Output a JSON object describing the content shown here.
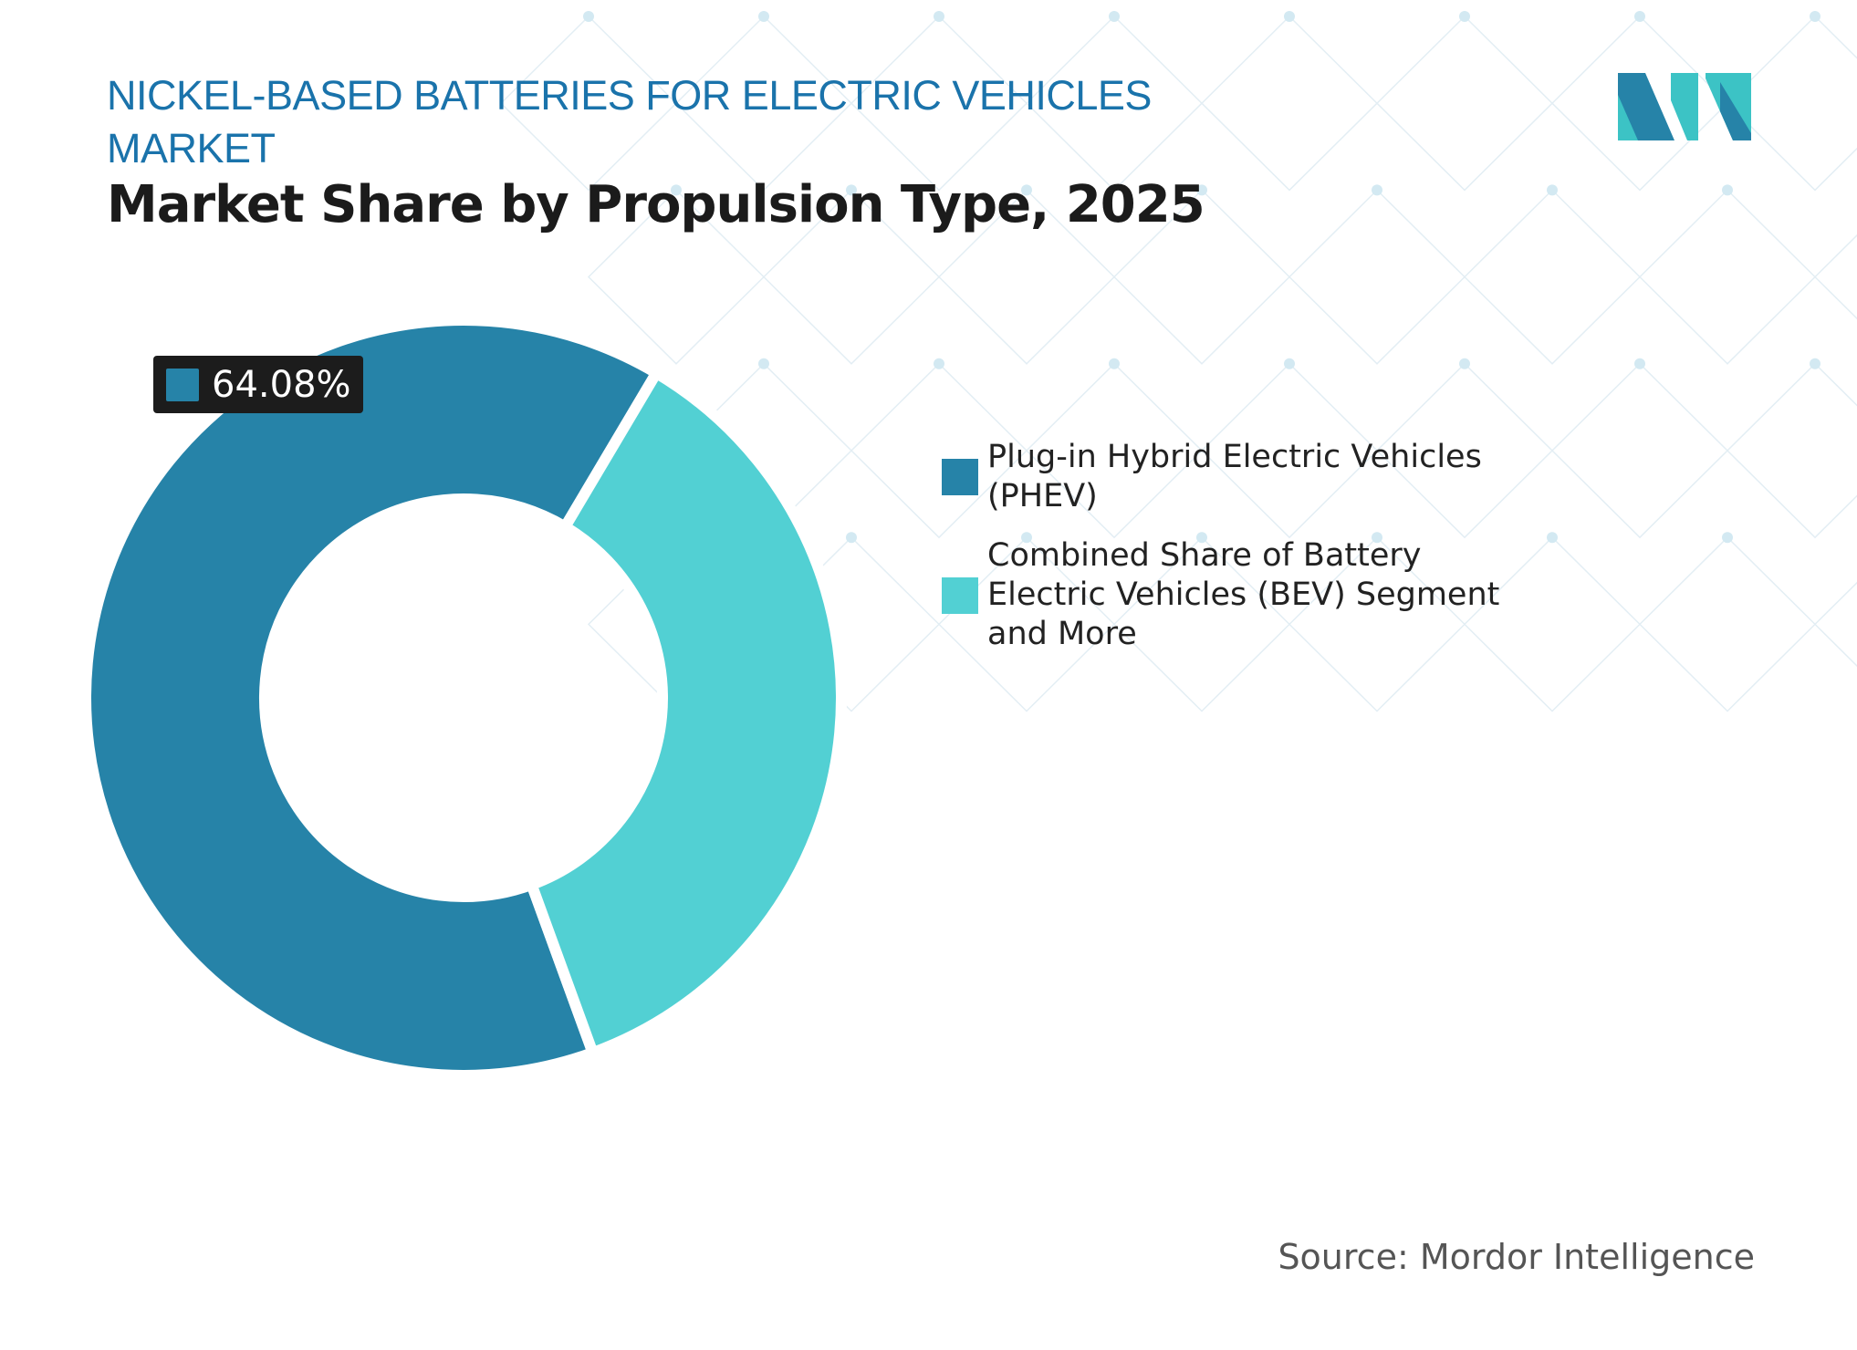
{
  "header": {
    "title": "NICKEL-BASED BATTERIES FOR ELECTRIC VEHICLES MARKET",
    "subtitle": "Market Share by Propulsion Type, 2025"
  },
  "colors": {
    "title": "#1a73ab",
    "phev": "#2683a8",
    "bev": "#52d0d3"
  },
  "chart_data": {
    "type": "pie",
    "donut": true,
    "title": "Market Share by Propulsion Type, 2025",
    "categories": [
      "Plug-in Hybrid Electric Vehicles (PHEV)",
      "Combined Share of Battery Electric Vehicles (BEV) Segment and More"
    ],
    "values": [
      64.08,
      35.92
    ],
    "data_labels": [
      "64.08%",
      ""
    ],
    "legend_position": "right"
  },
  "callout": {
    "value": "64.08%"
  },
  "legend": [
    {
      "label": "Plug-in Hybrid Electric Vehicles (PHEV)",
      "color": "#2683a8"
    },
    {
      "label": "Combined Share of Battery Electric Vehicles (BEV) Segment and More",
      "color": "#52d0d3"
    }
  ],
  "source": "Source: Mordor Intelligence",
  "logo": {
    "icon": "mordor-intelligence-logo"
  }
}
